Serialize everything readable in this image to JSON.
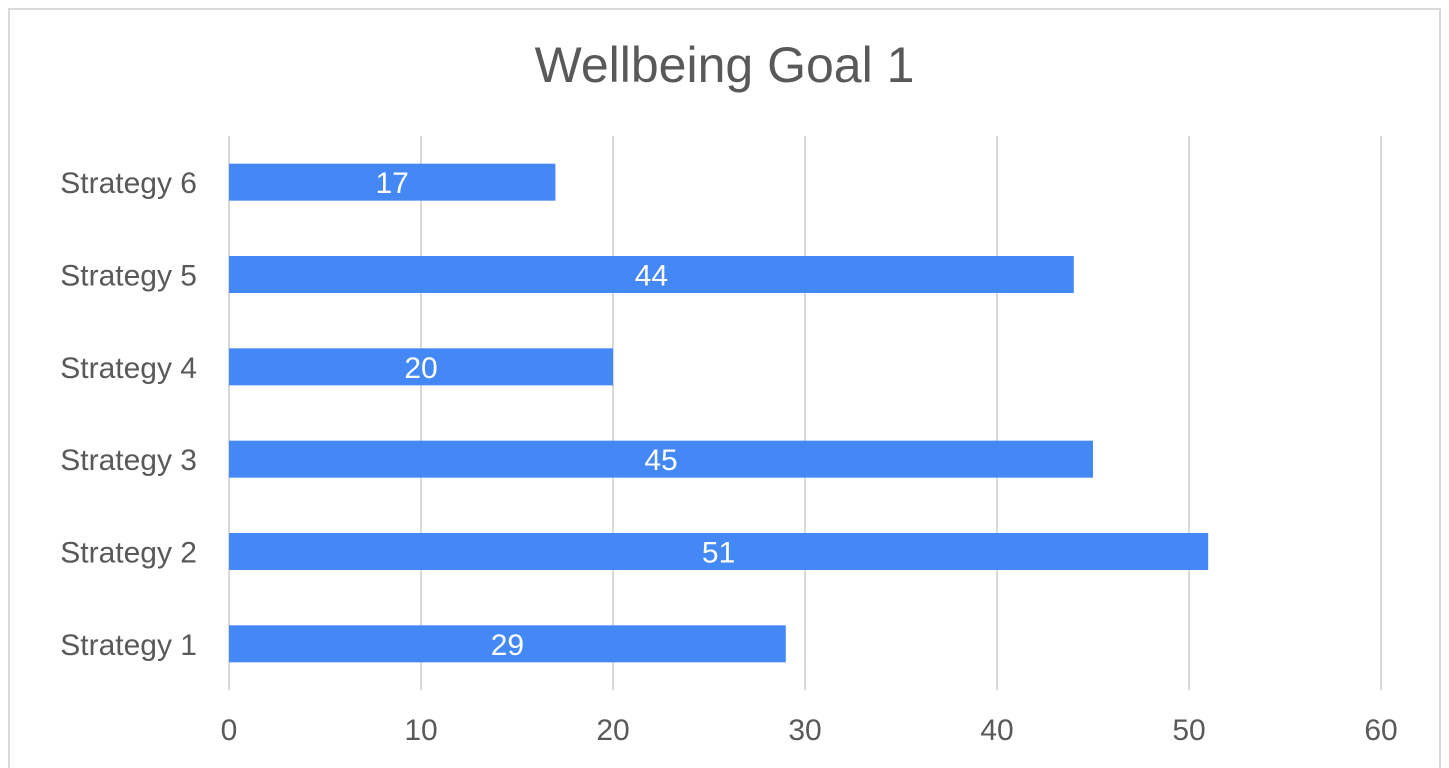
{
  "chart_data": {
    "type": "bar",
    "orientation": "horizontal",
    "title": "Wellbeing Goal 1",
    "categories": [
      "Strategy 1",
      "Strategy 2",
      "Strategy 3",
      "Strategy 4",
      "Strategy 5",
      "Strategy 6"
    ],
    "values": [
      29,
      51,
      45,
      20,
      44,
      17
    ],
    "xlim": [
      0,
      60
    ],
    "xticks": [
      0,
      10,
      20,
      30,
      40,
      50,
      60
    ],
    "grid": true,
    "legend": "none",
    "bar_color": "#4488f5",
    "data_labels": true
  }
}
